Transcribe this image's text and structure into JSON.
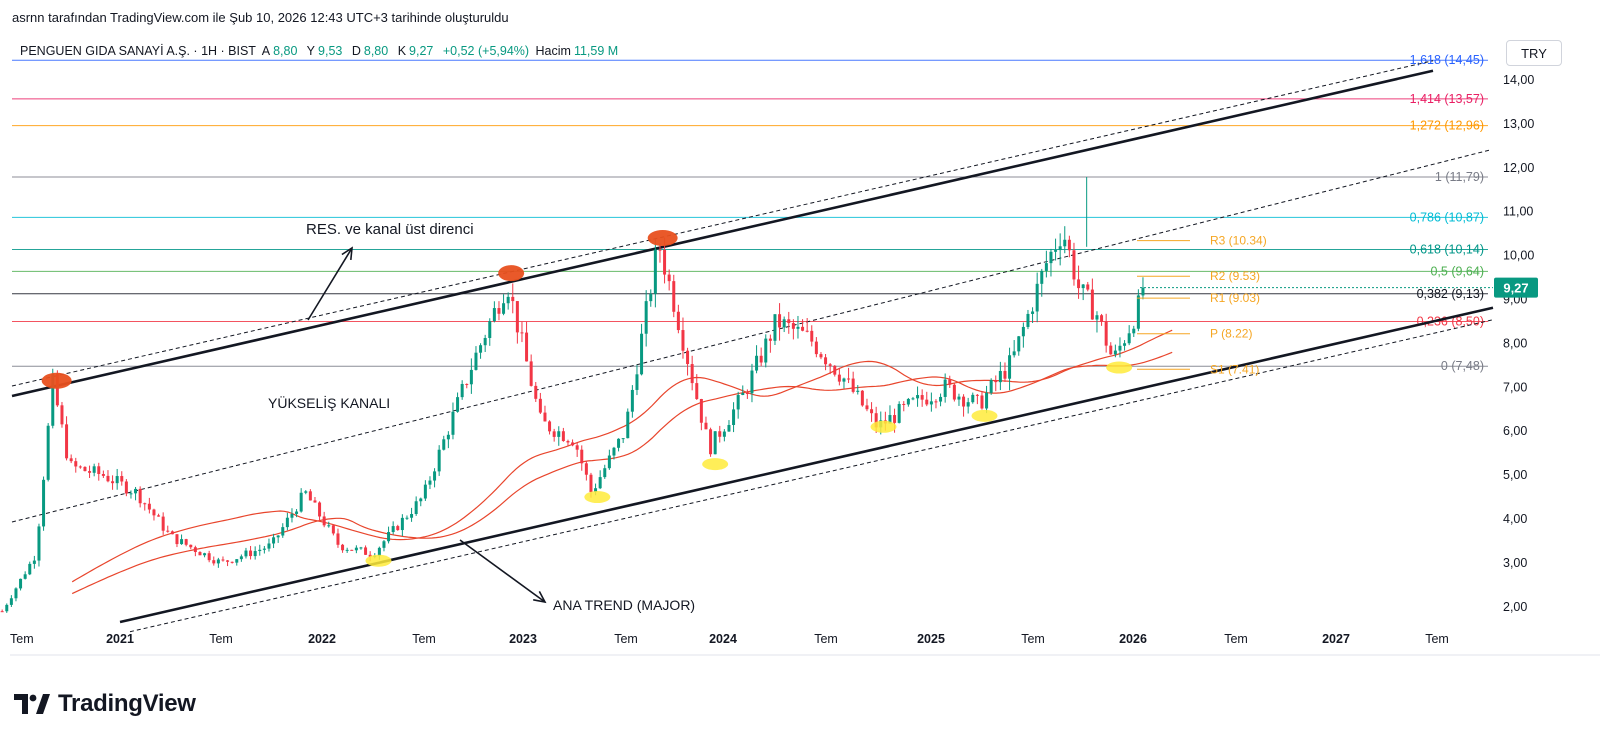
{
  "header": {
    "text": "asrnn tarafından TradingView.com ile Şub 10, 2026 12:43 UTC+3 tarihinde oluşturuldu"
  },
  "legend": {
    "symbol": "PENGUEN GIDA SANAYİ A.Ş. · 1H · BIST",
    "open_label": "A",
    "open": "8,80",
    "high_label": "Y",
    "high": "9,53",
    "low_label": "D",
    "low": "8,80",
    "close_label": "K",
    "close": "9,27",
    "change": "+0,52 (+5,94%)",
    "volume_label": "Hacim",
    "volume": "11,59 M"
  },
  "currency": "TRY",
  "footer": {
    "brand": "TradingView"
  },
  "chart_data": {
    "type": "candlestick",
    "price_axis_ticks": [
      "14,00",
      "13,00",
      "12,00",
      "11,00",
      "10,00",
      "9,00",
      "8,00",
      "7,00",
      "6,00",
      "5,00",
      "4,00",
      "3,00",
      "2,00"
    ],
    "price_axis_values": [
      14,
      13,
      12,
      11,
      10,
      9,
      8,
      7,
      6,
      5,
      4,
      3,
      2
    ],
    "time_axis_labels": [
      "Tem",
      "2021",
      "Tem",
      "2022",
      "Tem",
      "2023",
      "Tem",
      "2024",
      "Tem",
      "2025",
      "Tem",
      "2026",
      "Tem",
      "2027",
      "Tem"
    ],
    "current_price": {
      "label": "9,27",
      "value": 9.27
    },
    "fib_levels": [
      {
        "label": "1,618 (14,45)",
        "value": 14.45,
        "color": "#2962ff"
      },
      {
        "label": "1,414 (13,57)",
        "value": 13.57,
        "color": "#e91e63"
      },
      {
        "label": "1,272 (12,96)",
        "value": 12.96,
        "color": "#ff9800"
      },
      {
        "label": "1 (11,79)",
        "value": 11.79,
        "color": "#787b86"
      },
      {
        "label": "0,786 (10,87)",
        "value": 10.87,
        "color": "#00bcd4"
      },
      {
        "label": "0,618 (10,14)",
        "value": 10.14,
        "color": "#009688"
      },
      {
        "label": "0,5 (9,64)",
        "value": 9.64,
        "color": "#4caf50"
      },
      {
        "label": "0,382 (9,13)",
        "value": 9.13,
        "color": "#131722"
      },
      {
        "label": "0,236 (8,50)",
        "value": 8.5,
        "color": "#f23645"
      },
      {
        "label": "0 (7,48)",
        "value": 7.48,
        "color": "#787b86"
      }
    ],
    "pivot_levels": [
      {
        "label": "R3 (10.34)",
        "value": 10.34
      },
      {
        "label": "R2 (9.53)",
        "value": 9.53
      },
      {
        "label": "R1 (9.03)",
        "value": 9.03
      },
      {
        "label": "P (8.22)",
        "value": 8.22
      },
      {
        "label": "S1 (7.41)",
        "value": 7.41
      }
    ],
    "annotations": {
      "resistance": "RES. ve kanal üst direnci",
      "channel": "YÜKSELİŞ KANALI",
      "major_trend": "ANA TREND (MAJOR)"
    },
    "price_path": [
      {
        "date": "2020-06",
        "price": 1.9
      },
      {
        "date": "2020-08",
        "price": 3.2
      },
      {
        "date": "2020-09",
        "price": 7.1
      },
      {
        "date": "2020-10",
        "price": 5.2
      },
      {
        "date": "2020-12",
        "price": 5.0
      },
      {
        "date": "2021-02",
        "price": 4.6
      },
      {
        "date": "2021-04",
        "price": 3.6
      },
      {
        "date": "2021-07",
        "price": 3.0
      },
      {
        "date": "2021-10",
        "price": 3.4
      },
      {
        "date": "2021-12",
        "price": 4.6
      },
      {
        "date": "2022-02",
        "price": 3.4
      },
      {
        "date": "2022-04",
        "price": 3.2
      },
      {
        "date": "2022-07",
        "price": 4.5
      },
      {
        "date": "2022-10",
        "price": 7.6
      },
      {
        "date": "2022-12",
        "price": 9.4
      },
      {
        "date": "2023-02",
        "price": 6.2
      },
      {
        "date": "2023-04",
        "price": 5.8
      },
      {
        "date": "2023-05",
        "price": 4.6
      },
      {
        "date": "2023-07",
        "price": 6.0
      },
      {
        "date": "2023-09",
        "price": 10.3
      },
      {
        "date": "2023-10",
        "price": 8.8
      },
      {
        "date": "2023-11",
        "price": 7.2
      },
      {
        "date": "2023-12",
        "price": 5.6
      },
      {
        "date": "2024-02",
        "price": 6.8
      },
      {
        "date": "2024-04",
        "price": 8.5
      },
      {
        "date": "2024-06",
        "price": 8.1
      },
      {
        "date": "2024-08",
        "price": 7.2
      },
      {
        "date": "2024-10",
        "price": 6.1
      },
      {
        "date": "2024-12",
        "price": 6.6
      },
      {
        "date": "2025-02",
        "price": 7.0
      },
      {
        "date": "2025-04",
        "price": 6.6
      },
      {
        "date": "2025-06",
        "price": 7.6
      },
      {
        "date": "2025-08",
        "price": 9.8
      },
      {
        "date": "2025-09",
        "price": 10.6
      },
      {
        "date": "2025-10",
        "price": 9.2
      },
      {
        "date": "2025-11",
        "price": 8.7
      },
      {
        "date": "2025-12",
        "price": 7.6
      },
      {
        "date": "2026-01",
        "price": 8.4
      },
      {
        "date": "2026-02",
        "price": 9.27
      }
    ]
  }
}
